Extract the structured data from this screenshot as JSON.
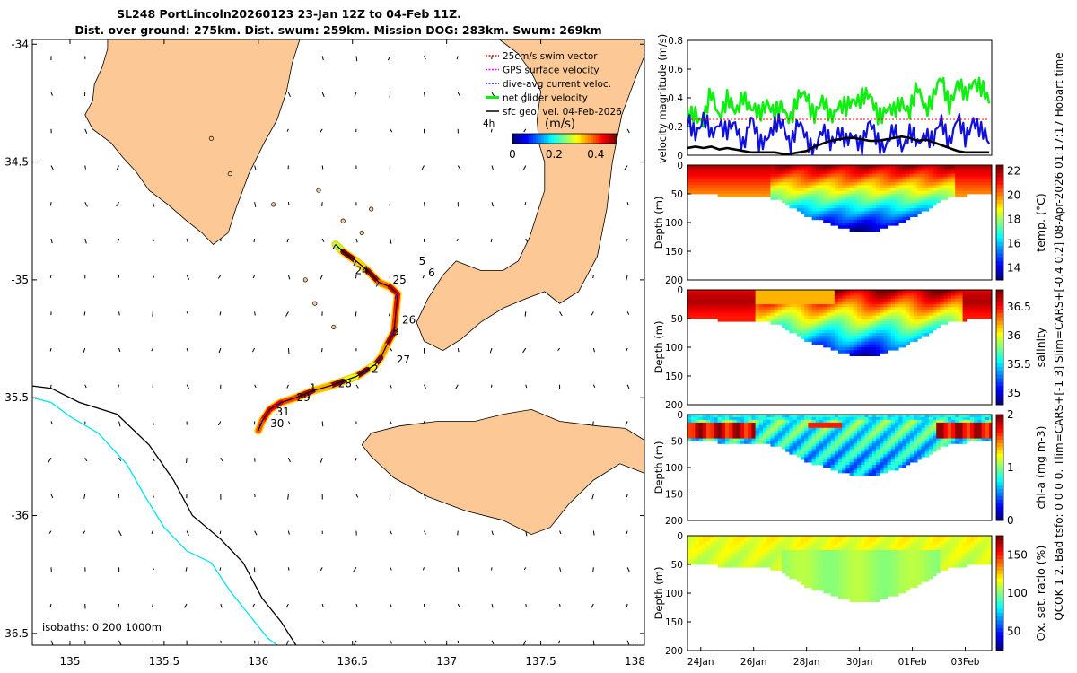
{
  "title": {
    "line1": "SL248 PortLincoln20260123 23-Jan 12Z to 04-Feb 11Z.",
    "line2": "Dist. over ground: 275km. Dist. swum: 259km. Mission DOG: 283km. Swum: 269km"
  },
  "side_label": "QCOK 1 2. Bad tsfo: 0 0 0 0. Tlim=CARS+[-1 3] Slim=CARS+[-0.4 0.2] 08-Apr-2026 01:17:17 Hobart time",
  "colors": {
    "land": "#fbc896",
    "coast": "#000000",
    "isobath_200": "#000000",
    "isobath_1000": "#00e5ee",
    "track": "#000000",
    "swim": "#ff0000",
    "gps": "#ff00ff",
    "dive_avg": "#1010dd",
    "net": "#11ee11",
    "geo": "#000000"
  },
  "chart_data": [
    {
      "type": "scatter",
      "name": "map",
      "xlim": [
        134.8,
        138.05
      ],
      "ylim": [
        -36.55,
        -33.98
      ],
      "xticks": [
        135,
        135.5,
        136,
        136.5,
        137,
        137.5,
        138
      ],
      "xticklabels": [
        "135",
        "135.5",
        "136",
        "136.5",
        "137",
        "137.5",
        "138"
      ],
      "yticks": [
        -34,
        -34.5,
        -35,
        -35.5,
        -36,
        -36.5
      ],
      "yticklabels": [
        "-34",
        "34.5",
        "-35",
        "35.5",
        "-36",
        "36.5"
      ],
      "isobaths_label": "isobaths: 0   200  1000m",
      "legend": [
        {
          "label": "25cm/s swim vector",
          "color": "#ff0000"
        },
        {
          "label": "GPS surface velocity",
          "color": "#ff00ff"
        },
        {
          "label": "dive-avg current veloc.",
          "color": "#1010dd"
        },
        {
          "label": "net glider velocity",
          "color": "#11ee11"
        },
        {
          "label": "sfc geo. vel. 04-Feb-2026",
          "color": "#000000"
        }
      ],
      "legend_extra": "4h",
      "colorbar": {
        "label": "(m/s)",
        "min": 0,
        "max": 0.5,
        "ticks": [
          0,
          0.2,
          0.4
        ],
        "ticklabels": [
          "0",
          "0.2",
          "0.4"
        ]
      },
      "track": [
        [
          136.41,
          -34.85
        ],
        [
          136.45,
          -34.88
        ],
        [
          136.52,
          -34.92
        ],
        [
          136.58,
          -34.96
        ],
        [
          136.64,
          -35.01
        ],
        [
          136.7,
          -35.03
        ],
        [
          136.74,
          -35.06
        ],
        [
          136.73,
          -35.14
        ],
        [
          136.72,
          -35.22
        ],
        [
          136.68,
          -35.28
        ],
        [
          136.65,
          -35.33
        ],
        [
          136.62,
          -35.36
        ],
        [
          136.58,
          -35.38
        ],
        [
          136.52,
          -35.41
        ],
        [
          136.45,
          -35.43
        ],
        [
          136.38,
          -35.45
        ],
        [
          136.29,
          -35.47
        ],
        [
          136.2,
          -35.5
        ],
        [
          136.12,
          -35.52
        ],
        [
          136.06,
          -35.55
        ],
        [
          136.02,
          -35.6
        ],
        [
          136.0,
          -35.64
        ]
      ],
      "day_labels": [
        {
          "text": "24",
          "lon": 136.55,
          "lat": -34.96
        },
        {
          "text": "5",
          "lon": 136.87,
          "lat": -34.92
        },
        {
          "text": "6",
          "lon": 136.92,
          "lat": -34.97
        },
        {
          "text": "25",
          "lon": 136.75,
          "lat": -35.0
        },
        {
          "text": "26",
          "lon": 136.8,
          "lat": -35.17
        },
        {
          "text": "3",
          "lon": 136.73,
          "lat": -35.22
        },
        {
          "text": "27",
          "lon": 136.77,
          "lat": -35.34
        },
        {
          "text": "2",
          "lon": 136.62,
          "lat": -35.38
        },
        {
          "text": "28",
          "lon": 136.46,
          "lat": -35.44
        },
        {
          "text": "1",
          "lon": 136.29,
          "lat": -35.46
        },
        {
          "text": "29",
          "lon": 136.24,
          "lat": -35.5
        },
        {
          "text": "31",
          "lon": 136.13,
          "lat": -35.56
        },
        {
          "text": "30",
          "lon": 136.1,
          "lat": -35.61
        }
      ],
      "land": [
        [
          [
            135.2,
            -33.98
          ],
          [
            135.2,
            -34.02
          ],
          [
            135.17,
            -34.1
          ],
          [
            135.13,
            -34.17
          ],
          [
            135.12,
            -34.24
          ],
          [
            135.08,
            -34.3
          ],
          [
            135.12,
            -34.36
          ],
          [
            135.22,
            -34.42
          ],
          [
            135.28,
            -34.48
          ],
          [
            135.35,
            -34.54
          ],
          [
            135.42,
            -34.62
          ],
          [
            135.52,
            -34.68
          ],
          [
            135.62,
            -34.75
          ],
          [
            135.7,
            -34.8
          ],
          [
            135.76,
            -34.85
          ],
          [
            135.84,
            -34.8
          ],
          [
            135.88,
            -34.7
          ],
          [
            135.95,
            -34.55
          ],
          [
            136.03,
            -34.42
          ],
          [
            136.1,
            -34.32
          ],
          [
            136.15,
            -34.2
          ],
          [
            136.18,
            -34.08
          ],
          [
            136.22,
            -33.98
          ]
        ],
        [
          [
            137.28,
            -33.98
          ],
          [
            137.38,
            -34.04
          ],
          [
            137.45,
            -34.12
          ],
          [
            137.5,
            -34.2
          ],
          [
            137.48,
            -34.32
          ],
          [
            137.49,
            -34.42
          ],
          [
            137.52,
            -34.5
          ],
          [
            137.52,
            -34.62
          ],
          [
            137.48,
            -34.72
          ],
          [
            137.44,
            -34.82
          ],
          [
            137.38,
            -34.92
          ],
          [
            137.3,
            -34.96
          ],
          [
            137.18,
            -34.96
          ],
          [
            137.05,
            -34.92
          ],
          [
            136.98,
            -34.98
          ],
          [
            136.9,
            -35.08
          ],
          [
            136.84,
            -35.18
          ],
          [
            136.88,
            -35.26
          ],
          [
            136.98,
            -35.3
          ],
          [
            137.08,
            -35.25
          ],
          [
            137.18,
            -35.18
          ],
          [
            137.3,
            -35.12
          ],
          [
            137.42,
            -35.08
          ],
          [
            137.52,
            -35.05
          ],
          [
            137.6,
            -35.1
          ],
          [
            137.7,
            -35.05
          ],
          [
            137.8,
            -34.9
          ],
          [
            137.85,
            -34.7
          ],
          [
            137.88,
            -34.5
          ],
          [
            137.93,
            -34.3
          ],
          [
            138.0,
            -34.15
          ],
          [
            138.05,
            -34.05
          ],
          [
            138.05,
            -33.98
          ]
        ],
        [
          [
            137.45,
            -35.55
          ],
          [
            137.6,
            -35.6
          ],
          [
            137.8,
            -35.62
          ],
          [
            137.95,
            -35.63
          ],
          [
            138.05,
            -35.68
          ],
          [
            138.05,
            -35.82
          ],
          [
            137.92,
            -35.78
          ],
          [
            137.78,
            -35.85
          ],
          [
            137.65,
            -35.95
          ],
          [
            137.55,
            -36.05
          ],
          [
            137.45,
            -36.08
          ],
          [
            137.3,
            -36.02
          ],
          [
            137.1,
            -35.98
          ],
          [
            136.9,
            -35.92
          ],
          [
            136.72,
            -35.84
          ],
          [
            136.6,
            -35.75
          ],
          [
            136.55,
            -35.7
          ],
          [
            136.6,
            -35.65
          ],
          [
            136.75,
            -35.62
          ],
          [
            136.95,
            -35.6
          ],
          [
            137.15,
            -35.6
          ],
          [
            137.3,
            -35.57
          ]
        ]
      ],
      "isobath_200": [
        [
          134.8,
          -35.45
        ],
        [
          134.9,
          -35.46
        ],
        [
          135.05,
          -35.52
        ],
        [
          135.25,
          -35.57
        ],
        [
          135.42,
          -35.7
        ],
        [
          135.55,
          -35.85
        ],
        [
          135.65,
          -36.0
        ],
        [
          135.8,
          -36.1
        ],
        [
          135.92,
          -36.2
        ],
        [
          136.02,
          -36.35
        ],
        [
          136.12,
          -36.45
        ],
        [
          136.2,
          -36.55
        ]
      ],
      "isobath_1000": [
        [
          134.8,
          -35.5
        ],
        [
          134.9,
          -35.52
        ],
        [
          135.0,
          -35.58
        ],
        [
          135.15,
          -35.65
        ],
        [
          135.3,
          -35.78
        ],
        [
          135.4,
          -35.92
        ],
        [
          135.5,
          -36.05
        ],
        [
          135.62,
          -36.15
        ],
        [
          135.75,
          -36.2
        ],
        [
          135.85,
          -36.32
        ],
        [
          135.95,
          -36.42
        ],
        [
          136.05,
          -36.52
        ],
        [
          136.1,
          -36.55
        ]
      ]
    },
    {
      "type": "line",
      "name": "velocity",
      "ylabel": "velocity magnitude (m/s)",
      "ylim": [
        0,
        0.8
      ],
      "yticks": [
        0,
        0.2,
        0.4,
        0.6,
        0.8
      ],
      "yticklabels": [
        "0",
        "0.2",
        "0.4",
        "0.6",
        "0.8"
      ],
      "xlim": [
        23.5,
        35.0
      ],
      "x": [
        23.5,
        23.8,
        24.1,
        24.4,
        24.7,
        25.0,
        25.3,
        25.6,
        25.9,
        26.2,
        26.5,
        26.8,
        27.1,
        27.4,
        27.7,
        28.0,
        28.3,
        28.6,
        28.9,
        29.2,
        29.5,
        29.8,
        30.1,
        30.4,
        30.7,
        31.0,
        31.3,
        31.6,
        31.9,
        32.2,
        32.5,
        32.8,
        33.1,
        33.4,
        33.7,
        34.0,
        34.3,
        34.6,
        34.9
      ],
      "series": [
        {
          "name": "net glider velocity",
          "values": [
            0.25,
            0.32,
            0.22,
            0.42,
            0.3,
            0.38,
            0.28,
            0.45,
            0.3,
            0.28,
            0.4,
            0.26,
            0.33,
            0.28,
            0.38,
            0.42,
            0.3,
            0.35,
            0.28,
            0.36,
            0.3,
            0.4,
            0.42,
            0.38,
            0.3,
            0.32,
            0.28,
            0.4,
            0.3,
            0.45,
            0.35,
            0.4,
            0.52,
            0.38,
            0.48,
            0.4,
            0.55,
            0.45,
            0.36
          ]
        },
        {
          "name": "dive-avg current veloc.",
          "values": [
            0.22,
            0.18,
            0.25,
            0.12,
            0.26,
            0.15,
            0.2,
            0.1,
            0.24,
            0.08,
            0.15,
            0.18,
            0.22,
            0.1,
            0.2,
            0.12,
            0.06,
            0.14,
            0.1,
            0.18,
            0.06,
            0.16,
            0.08,
            0.2,
            0.12,
            0.06,
            0.15,
            0.08,
            0.16,
            0.05,
            0.18,
            0.1,
            0.22,
            0.12,
            0.25,
            0.1,
            0.28,
            0.15,
            0.08
          ]
        },
        {
          "name": "sfc geo. vel.",
          "values": [
            0.05,
            0.06,
            0.05,
            0.06,
            0.04,
            0.05,
            0.04,
            0.03,
            0.02,
            0.02,
            0.02,
            0.02,
            0.01,
            0.01,
            0.02,
            0.03,
            0.06,
            0.08,
            0.1,
            0.11,
            0.12,
            0.12,
            0.11,
            0.1,
            0.1,
            0.11,
            0.12,
            0.13,
            0.12,
            0.1,
            0.11,
            0.09,
            0.07,
            0.05,
            0.03,
            0.02,
            0.02,
            0.02,
            0.02
          ]
        },
        {
          "name": "25cm/s swim vector",
          "values": [
            0.25,
            0.25,
            0.25,
            0.25,
            0.25,
            0.25,
            0.25,
            0.25,
            0.25,
            0.25,
            0.25,
            0.25,
            0.25,
            0.25,
            0.25,
            0.25,
            0.25,
            0.25,
            0.25,
            0.25,
            0.25,
            0.25,
            0.25,
            0.25,
            0.25,
            0.25,
            0.25,
            0.25,
            0.25,
            0.25,
            0.25,
            0.25,
            0.25,
            0.25,
            0.25,
            0.25,
            0.25,
            0.25,
            0.25
          ]
        }
      ]
    },
    {
      "type": "heatmap",
      "name": "temperature",
      "ylabel": "Depth (m)",
      "cbar_label": "temp. (°C)",
      "clim": [
        13,
        22.5
      ],
      "cbar_ticks": [
        14,
        16,
        18,
        20,
        22
      ],
      "cbar_ticklabels": [
        "14",
        "16",
        "18",
        "20",
        "22"
      ],
      "surface": 22,
      "deep": 13,
      "ylim": [
        0,
        200
      ],
      "yticks": [
        0,
        50,
        100,
        150,
        200
      ],
      "yticklabels": [
        "0",
        "50",
        "100",
        "150",
        "200"
      ]
    },
    {
      "type": "heatmap",
      "name": "salinity",
      "ylabel": "Depth (m)",
      "cbar_label": "salinity",
      "clim": [
        34.8,
        36.8
      ],
      "cbar_ticks": [
        35,
        35.5,
        36,
        36.5
      ],
      "cbar_ticklabels": [
        "35",
        "35.5",
        "36",
        "36.5"
      ],
      "surface": 36.7,
      "deep": 35.0,
      "ylim": [
        0,
        200
      ],
      "yticks": [
        0,
        50,
        100,
        150,
        200
      ],
      "yticklabels": [
        "0",
        "50",
        "100",
        "150",
        "200"
      ]
    },
    {
      "type": "heatmap",
      "name": "chlorophyll",
      "ylabel": "Depth (m)",
      "cbar_label": "chl-a (mg m-3)",
      "clim": [
        0,
        2
      ],
      "cbar_ticks": [
        0,
        1,
        2
      ],
      "cbar_ticklabels": [
        "0",
        "1",
        "2"
      ],
      "surface": 1.0,
      "deep": 0.6,
      "ylim": [
        0,
        200
      ],
      "yticks": [
        0,
        50,
        100,
        150,
        200
      ],
      "yticklabels": [
        "0",
        "50",
        "100",
        "150",
        "200"
      ]
    },
    {
      "type": "heatmap",
      "name": "oxygen",
      "ylabel": "Depth (m)",
      "cbar_label": "Ox. sat. ratio (%)",
      "clim": [
        25,
        175
      ],
      "cbar_ticks": [
        50,
        100,
        150
      ],
      "cbar_ticklabels": [
        "50",
        "100",
        "150"
      ],
      "surface": 118,
      "deep": 100,
      "ylim": [
        0,
        200
      ],
      "yticks": [
        0,
        50,
        100,
        150,
        200
      ],
      "yticklabels": [
        "0",
        "50",
        "100",
        "150",
        "200"
      ],
      "xticks": [
        24,
        26,
        28,
        30,
        32,
        34
      ],
      "xticklabels": [
        "24Jan",
        "26Jan",
        "28Jan",
        "30Jan",
        "01Feb",
        "03Feb"
      ]
    }
  ],
  "section_profile": {
    "xlim": [
      23.5,
      35.0
    ],
    "x": [
      23.5,
      24.5,
      25.5,
      26.5,
      27.0,
      27.5,
      28.0,
      28.5,
      29.0,
      29.5,
      30.0,
      30.5,
      31.0,
      31.5,
      32.0,
      32.5,
      33.0,
      33.5,
      34.0,
      35.0
    ],
    "bottom_depth": [
      50,
      50,
      52,
      55,
      60,
      75,
      88,
      95,
      103,
      110,
      115,
      112,
      105,
      98,
      88,
      75,
      60,
      52,
      50,
      50
    ]
  }
}
